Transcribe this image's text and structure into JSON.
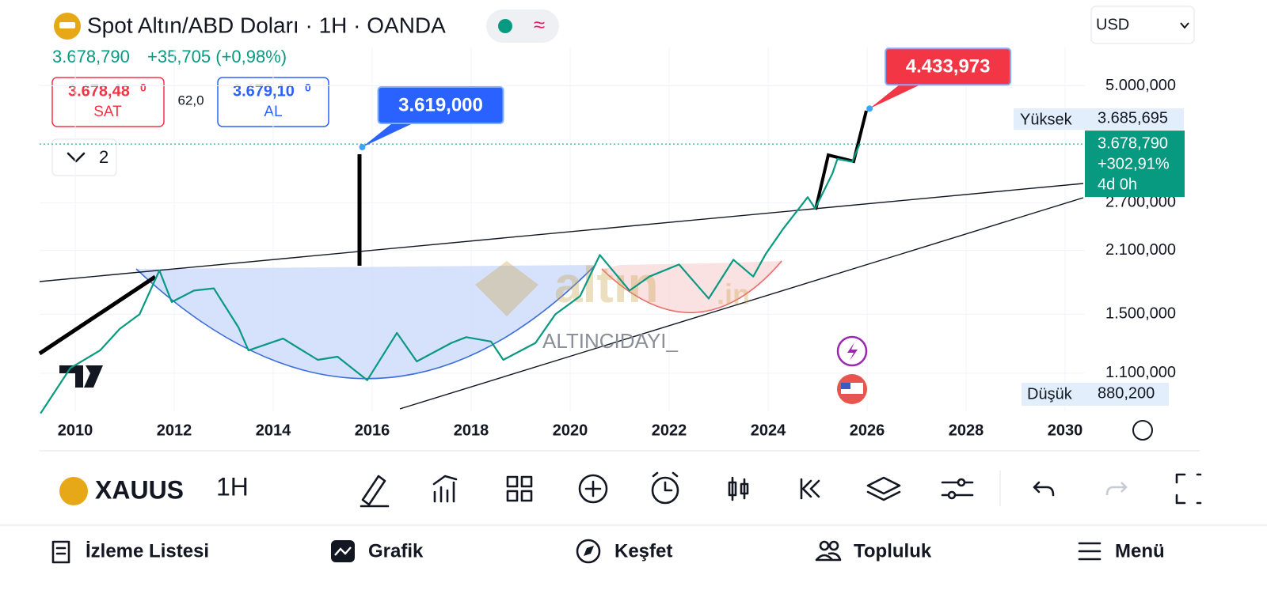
{
  "header": {
    "title": "Spot Altın/ABD Doları · 1H · OANDA",
    "price": "3.678,790",
    "change": "+35,705 (+0,98%)",
    "sell_price": "3.678,48",
    "sell_price_small": "0",
    "sell_label": "SAT",
    "spread": "62,0",
    "buy_price": "3.679,10",
    "buy_price_small": "0",
    "buy_label": "AL",
    "indicator_count": "2",
    "currency": "USD"
  },
  "chart_data": {
    "type": "line",
    "color": "#089981",
    "log_scale": true,
    "x": [
      2009.3,
      2009.9,
      2010.5,
      2010.9,
      2011.3,
      2011.7,
      2011.95,
      2012.4,
      2012.8,
      2013.3,
      2013.5,
      2014.2,
      2014.9,
      2015.3,
      2015.9,
      2016.5,
      2016.9,
      2017.6,
      2017.9,
      2018.4,
      2018.65,
      2019.3,
      2019.7,
      2020.2,
      2020.6,
      2021.2,
      2021.6,
      2022.2,
      2022.8,
      2023.3,
      2023.7,
      2023.95,
      2024.3,
      2024.8,
      2024.95,
      2025.3,
      2025.4,
      2025.7,
      2025.85
    ],
    "values": [
      890,
      1130,
      1240,
      1390,
      1500,
      1890,
      1600,
      1700,
      1720,
      1400,
      1240,
      1320,
      1180,
      1200,
      1060,
      1360,
      1170,
      1290,
      1330,
      1300,
      1180,
      1290,
      1500,
      1650,
      2050,
      1700,
      1830,
      1950,
      1630,
      2000,
      1830,
      2060,
      2350,
      2780,
      2620,
      3150,
      3400,
      3350,
      3678.79
    ],
    "xlim": [
      2009.28,
      2030.4
    ],
    "ylim": [
      900,
      5400
    ],
    "xticks": [
      2010,
      2012,
      2014,
      2016,
      2018,
      2020,
      2022,
      2024,
      2026,
      2028,
      {
        "value": 2030,
        "label": "2030"
      }
    ],
    "yticks": [
      {
        "value": 1100,
        "label": "1.100,000"
      },
      {
        "value": 1500,
        "label": "1.500,000"
      },
      {
        "value": 2100,
        "label": "2.100,000"
      },
      {
        "value": 2700,
        "label": "2.700,000"
      },
      {
        "value": 5000,
        "label": "5.000,000"
      }
    ],
    "annotations": [
      {
        "x": 2015.8,
        "value": 3619,
        "label": "3.619,000",
        "color": "#2962ff"
      },
      {
        "x": 2026.05,
        "value": 4433.973,
        "label": "4.433,973",
        "color": "#f23645"
      }
    ],
    "last_price": {
      "value": 3678.79,
      "label": "3.678,790"
    },
    "last_change": "+302,91%",
    "countdown": "4d 0h",
    "high_label": "Yüksek",
    "high_value": "3.685,695",
    "low_label": "Düşük",
    "low_value": "880,200",
    "watermark": "ALTINCIDAYI_"
  },
  "toolbar": {
    "symbol": "XAUUS",
    "interval": "1H"
  },
  "nav": [
    "İzleme Listesi",
    "Grafik",
    "Keşfet",
    "Topluluk",
    "Menü"
  ]
}
